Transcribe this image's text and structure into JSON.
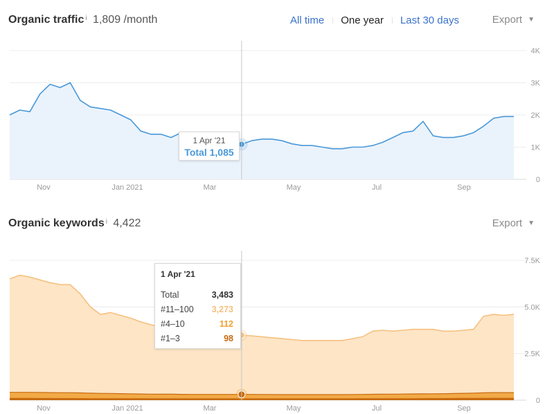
{
  "traffic": {
    "title": "Organic traffic",
    "info_icon": "i",
    "metric": "1,809 /month",
    "range_tabs": [
      "All time",
      "One year",
      "Last 30 days"
    ],
    "active_tab": "One year",
    "export_label": "Export",
    "export_caret": "▼",
    "tooltip": {
      "date": "1 Apr '21",
      "total_label": "Total",
      "total_value": "1,085"
    },
    "colors": {
      "line": "#4a98d8",
      "fill": "#eaf3fc",
      "marker": "#4a98d8"
    }
  },
  "keywords": {
    "title": "Organic keywords",
    "info_icon": "i",
    "metric": "4,422",
    "export_label": "Export",
    "export_caret": "▼",
    "tooltip": {
      "date": "1 Apr '21",
      "rows": [
        {
          "label": "Total",
          "value": "3,483",
          "color": "#333333"
        },
        {
          "label": "#11–100",
          "value": "3,273",
          "color": "#f6c07f"
        },
        {
          "label": "#4–10",
          "value": "112",
          "color": "#f0a030"
        },
        {
          "label": "#1–3",
          "value": "98",
          "color": "#c76a10"
        }
      ]
    },
    "colors": {
      "fill": "#fde5c6",
      "line": "#f6c07f",
      "band_mid": "#f0a030",
      "band_top": "#c76a10"
    }
  },
  "chart_data": [
    {
      "type": "area",
      "title": "Organic traffic",
      "x_tick_labels": [
        "Nov",
        "Jan 2021",
        "Mar",
        "May",
        "Jul",
        "Sep"
      ],
      "y_tick_labels": [
        "0",
        "1K",
        "2K",
        "3K",
        "4K"
      ],
      "ylim": [
        0,
        4000
      ],
      "grid": true,
      "highlight": {
        "date": "1 Apr '21",
        "value": 1085
      },
      "x": [
        "Oct 20",
        "Oct 27",
        "Nov 3",
        "Nov 10",
        "Nov 17",
        "Nov 24",
        "Dec 1",
        "Dec 8",
        "Dec 15",
        "Dec 22",
        "Dec 29",
        "Jan 5",
        "Jan 12",
        "Jan 19",
        "Jan 26",
        "Feb 2",
        "Feb 9",
        "Feb 16",
        "Feb 23",
        "Mar 2",
        "Mar 9",
        "Mar 16",
        "Mar 23",
        "Apr 1",
        "Apr 8",
        "Apr 15",
        "Apr 22",
        "Apr 29",
        "May 6",
        "May 13",
        "May 20",
        "May 27",
        "Jun 3",
        "Jun 10",
        "Jun 17",
        "Jun 24",
        "Jul 1",
        "Jul 8",
        "Jul 15",
        "Jul 22",
        "Jul 29",
        "Aug 5",
        "Aug 12",
        "Aug 19",
        "Aug 26",
        "Sep 2",
        "Sep 9",
        "Sep 16",
        "Sep 23",
        "Sep 30",
        "Oct 7"
      ],
      "series": [
        {
          "values": [
            2000,
            2150,
            2100,
            2650,
            2950,
            2850,
            3000,
            2450,
            2250,
            2200,
            2150,
            2000,
            1850,
            1500,
            1400,
            1400,
            1300,
            1450,
            1450,
            1450,
            1450,
            1400,
            1250,
            1085,
            1200,
            1250,
            1250,
            1200,
            1100,
            1050,
            1050,
            1000,
            950,
            950,
            1000,
            1000,
            1050,
            1150,
            1300,
            1450,
            1500,
            1800,
            1350,
            1300,
            1300,
            1350,
            1450,
            1650,
            1900,
            1950,
            1950
          ]
        }
      ]
    },
    {
      "type": "area",
      "title": "Organic keywords",
      "x_tick_labels": [
        "Nov",
        "Jan 2021",
        "Mar",
        "May",
        "Jul",
        "Sep"
      ],
      "y_tick_labels": [
        "0",
        "2.5K",
        "5.0K",
        "7.5K"
      ],
      "ylim": [
        0,
        7500
      ],
      "grid": true,
      "highlight": {
        "date": "1 Apr '21",
        "total": 3483,
        "pos_11_100": 3273,
        "pos_4_10": 112,
        "pos_1_3": 98
      },
      "x": [
        "Oct 20",
        "Oct 27",
        "Nov 3",
        "Nov 10",
        "Nov 17",
        "Nov 24",
        "Dec 1",
        "Dec 8",
        "Dec 15",
        "Dec 22",
        "Dec 29",
        "Jan 5",
        "Jan 12",
        "Jan 19",
        "Jan 26",
        "Feb 2",
        "Feb 9",
        "Feb 16",
        "Feb 23",
        "Mar 2",
        "Mar 9",
        "Mar 16",
        "Mar 23",
        "Apr 1",
        "Apr 8",
        "Apr 15",
        "Apr 22",
        "Apr 29",
        "May 6",
        "May 13",
        "May 20",
        "May 27",
        "Jun 3",
        "Jun 10",
        "Jun 17",
        "Jun 24",
        "Jul 1",
        "Jul 8",
        "Jul 15",
        "Jul 22",
        "Jul 29",
        "Aug 5",
        "Aug 12",
        "Aug 19",
        "Aug 26",
        "Sep 2",
        "Sep 9",
        "Sep 16",
        "Sep 23",
        "Sep 30",
        "Oct 7"
      ],
      "series": [
        {
          "name": "Total",
          "values": [
            6500,
            6700,
            6600,
            6450,
            6300,
            6200,
            6200,
            5700,
            5000,
            4600,
            4700,
            4550,
            4400,
            4200,
            4050,
            3900,
            3950,
            3850,
            3750,
            3700,
            3600,
            3550,
            3500,
            3483,
            3450,
            3400,
            3350,
            3300,
            3250,
            3200,
            3200,
            3200,
            3200,
            3200,
            3300,
            3400,
            3700,
            3750,
            3700,
            3750,
            3800,
            3800,
            3800,
            3700,
            3700,
            3750,
            3800,
            4500,
            4600,
            4550,
            4600
          ]
        },
        {
          "name": "#4–10",
          "values": [
            300,
            300,
            300,
            300,
            290,
            290,
            290,
            280,
            270,
            260,
            260,
            250,
            240,
            230,
            225,
            220,
            220,
            215,
            212,
            210,
            210,
            210,
            210,
            210,
            210,
            205,
            205,
            200,
            200,
            200,
            200,
            200,
            200,
            200,
            205,
            210,
            215,
            220,
            220,
            220,
            230,
            230,
            230,
            235,
            240,
            250,
            260,
            270,
            280,
            280,
            280
          ]
        },
        {
          "name": "#1–3",
          "values": [
            120,
            120,
            120,
            115,
            115,
            110,
            110,
            108,
            105,
            105,
            102,
            100,
            100,
            100,
            98,
            98,
            98,
            98,
            98,
            98,
            98,
            98,
            98,
            98,
            98,
            98,
            98,
            98,
            98,
            98,
            98,
            98,
            98,
            98,
            98,
            100,
            100,
            100,
            102,
            105,
            105,
            108,
            110,
            112,
            115,
            118,
            120,
            122,
            125,
            125,
            125
          ]
        }
      ]
    }
  ]
}
